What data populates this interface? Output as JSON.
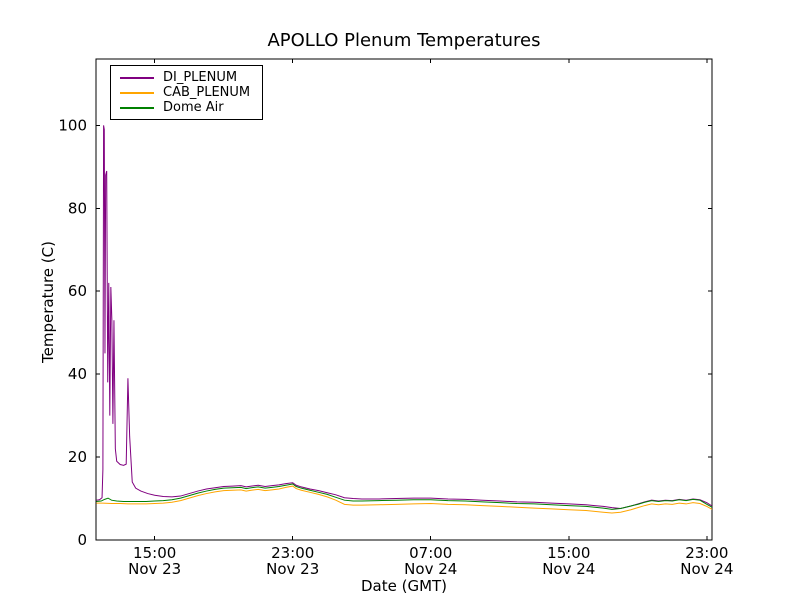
{
  "chart_data": {
    "type": "line",
    "title": "APOLLO Plenum Temperatures",
    "xlabel": "Date (GMT)",
    "ylabel": "Temperature (C)",
    "grid": false,
    "legend_position": "upper left",
    "x_unit": "hours since Nov 23 00:00 GMT",
    "xlim": [
      11.6,
      47.3
    ],
    "ylim": [
      0,
      116
    ],
    "y_ticks": [
      0,
      20,
      40,
      60,
      80,
      100
    ],
    "x_ticks": [
      {
        "value": 15,
        "label": "15:00",
        "sublabel": "Nov 23"
      },
      {
        "value": 23,
        "label": "23:00",
        "sublabel": "Nov 23"
      },
      {
        "value": 31,
        "label": "07:00",
        "sublabel": "Nov 24"
      },
      {
        "value": 39,
        "label": "15:00",
        "sublabel": "Nov 24"
      },
      {
        "value": 47,
        "label": "23:00",
        "sublabel": "Nov 24"
      }
    ],
    "series": [
      {
        "name": "DI_PLENUM",
        "color": "#800080",
        "points": [
          [
            11.62,
            9.6
          ],
          [
            11.8,
            9.7
          ],
          [
            11.95,
            10.2
          ],
          [
            12.0,
            17
          ],
          [
            12.04,
            100
          ],
          [
            12.08,
            99
          ],
          [
            12.12,
            45
          ],
          [
            12.16,
            88
          ],
          [
            12.22,
            89
          ],
          [
            12.28,
            38
          ],
          [
            12.34,
            62
          ],
          [
            12.4,
            30
          ],
          [
            12.46,
            61
          ],
          [
            12.52,
            53
          ],
          [
            12.58,
            28
          ],
          [
            12.64,
            53
          ],
          [
            12.72,
            22
          ],
          [
            12.8,
            19
          ],
          [
            13.0,
            18.2
          ],
          [
            13.2,
            18.0
          ],
          [
            13.35,
            18.3
          ],
          [
            13.45,
            39
          ],
          [
            13.55,
            25
          ],
          [
            13.7,
            14
          ],
          [
            13.9,
            12.5
          ],
          [
            14.2,
            11.8
          ],
          [
            14.6,
            11.2
          ],
          [
            15.0,
            10.8
          ],
          [
            15.5,
            10.5
          ],
          [
            16.0,
            10.4
          ],
          [
            16.5,
            10.6
          ],
          [
            17.0,
            11.2
          ],
          [
            17.5,
            11.8
          ],
          [
            18.0,
            12.3
          ],
          [
            18.5,
            12.6
          ],
          [
            19.0,
            12.9
          ],
          [
            19.5,
            13.0
          ],
          [
            20.0,
            13.1
          ],
          [
            20.3,
            12.8
          ],
          [
            20.6,
            13.0
          ],
          [
            21.0,
            13.2
          ],
          [
            21.4,
            12.9
          ],
          [
            21.8,
            13.1
          ],
          [
            22.2,
            13.3
          ],
          [
            22.6,
            13.6
          ],
          [
            23.0,
            13.8
          ],
          [
            23.2,
            13.2
          ],
          [
            23.5,
            12.8
          ],
          [
            24.0,
            12.3
          ],
          [
            24.5,
            11.9
          ],
          [
            25.0,
            11.4
          ],
          [
            25.5,
            10.9
          ],
          [
            26.0,
            10.2
          ],
          [
            26.5,
            10.0
          ],
          [
            27.0,
            9.9
          ],
          [
            28.0,
            9.9
          ],
          [
            29.0,
            10.0
          ],
          [
            30.0,
            10.1
          ],
          [
            31.0,
            10.1
          ],
          [
            32.0,
            9.9
          ],
          [
            33.0,
            9.8
          ],
          [
            34.0,
            9.6
          ],
          [
            35.0,
            9.4
          ],
          [
            36.0,
            9.2
          ],
          [
            37.0,
            9.1
          ],
          [
            38.0,
            8.9
          ],
          [
            39.0,
            8.7
          ],
          [
            40.0,
            8.5
          ],
          [
            40.5,
            8.3
          ],
          [
            41.0,
            8.1
          ],
          [
            41.5,
            7.8
          ],
          [
            42.0,
            7.6
          ],
          [
            42.3,
            7.9
          ],
          [
            42.6,
            8.2
          ],
          [
            43.0,
            8.7
          ],
          [
            43.4,
            9.2
          ],
          [
            43.8,
            9.6
          ],
          [
            44.2,
            9.4
          ],
          [
            44.6,
            9.6
          ],
          [
            45.0,
            9.5
          ],
          [
            45.4,
            9.8
          ],
          [
            45.8,
            9.6
          ],
          [
            46.2,
            9.9
          ],
          [
            46.6,
            9.7
          ],
          [
            47.0,
            9.0
          ],
          [
            47.3,
            8.2
          ]
        ]
      },
      {
        "name": "CAB_PLENUM",
        "color": "#ffa500",
        "points": [
          [
            11.62,
            8.9
          ],
          [
            12.0,
            8.9
          ],
          [
            12.5,
            8.8
          ],
          [
            13.0,
            8.8
          ],
          [
            13.5,
            8.7
          ],
          [
            14.0,
            8.7
          ],
          [
            14.5,
            8.7
          ],
          [
            15.0,
            8.8
          ],
          [
            15.5,
            8.9
          ],
          [
            16.0,
            9.1
          ],
          [
            16.5,
            9.5
          ],
          [
            17.0,
            10.1
          ],
          [
            17.5,
            10.7
          ],
          [
            18.0,
            11.2
          ],
          [
            18.5,
            11.6
          ],
          [
            19.0,
            11.9
          ],
          [
            19.5,
            12.0
          ],
          [
            20.0,
            12.1
          ],
          [
            20.3,
            11.8
          ],
          [
            20.6,
            12.0
          ],
          [
            21.0,
            12.2
          ],
          [
            21.4,
            11.9
          ],
          [
            21.8,
            12.1
          ],
          [
            22.2,
            12.3
          ],
          [
            22.6,
            12.7
          ],
          [
            23.0,
            13.0
          ],
          [
            23.2,
            12.4
          ],
          [
            23.5,
            12.0
          ],
          [
            24.0,
            11.5
          ],
          [
            24.5,
            11.0
          ],
          [
            25.0,
            10.4
          ],
          [
            25.5,
            9.6
          ],
          [
            26.0,
            8.6
          ],
          [
            26.5,
            8.4
          ],
          [
            27.0,
            8.4
          ],
          [
            28.0,
            8.5
          ],
          [
            29.0,
            8.6
          ],
          [
            30.0,
            8.7
          ],
          [
            31.0,
            8.8
          ],
          [
            32.0,
            8.6
          ],
          [
            33.0,
            8.5
          ],
          [
            34.0,
            8.3
          ],
          [
            35.0,
            8.1
          ],
          [
            36.0,
            7.9
          ],
          [
            37.0,
            7.7
          ],
          [
            38.0,
            7.5
          ],
          [
            39.0,
            7.3
          ],
          [
            40.0,
            7.1
          ],
          [
            40.5,
            6.9
          ],
          [
            41.0,
            6.7
          ],
          [
            41.5,
            6.5
          ],
          [
            42.0,
            6.7
          ],
          [
            42.3,
            7.0
          ],
          [
            42.6,
            7.3
          ],
          [
            43.0,
            7.8
          ],
          [
            43.4,
            8.3
          ],
          [
            43.8,
            8.7
          ],
          [
            44.2,
            8.5
          ],
          [
            44.6,
            8.7
          ],
          [
            45.0,
            8.6
          ],
          [
            45.4,
            8.9
          ],
          [
            45.8,
            8.7
          ],
          [
            46.2,
            9.0
          ],
          [
            46.6,
            8.8
          ],
          [
            47.0,
            8.1
          ],
          [
            47.3,
            7.4
          ]
        ]
      },
      {
        "name": "Dome Air",
        "color": "#008000",
        "points": [
          [
            11.62,
            9.3
          ],
          [
            11.9,
            9.4
          ],
          [
            12.1,
            9.8
          ],
          [
            12.3,
            10.1
          ],
          [
            12.5,
            9.6
          ],
          [
            12.8,
            9.4
          ],
          [
            13.2,
            9.3
          ],
          [
            13.6,
            9.3
          ],
          [
            14.0,
            9.3
          ],
          [
            14.5,
            9.3
          ],
          [
            15.0,
            9.4
          ],
          [
            15.5,
            9.5
          ],
          [
            16.0,
            9.7
          ],
          [
            16.5,
            10.1
          ],
          [
            17.0,
            10.7
          ],
          [
            17.5,
            11.3
          ],
          [
            18.0,
            11.8
          ],
          [
            18.5,
            12.2
          ],
          [
            19.0,
            12.5
          ],
          [
            19.5,
            12.6
          ],
          [
            20.0,
            12.7
          ],
          [
            20.3,
            12.4
          ],
          [
            20.6,
            12.6
          ],
          [
            21.0,
            12.8
          ],
          [
            21.4,
            12.5
          ],
          [
            21.8,
            12.7
          ],
          [
            22.2,
            12.9
          ],
          [
            22.6,
            13.2
          ],
          [
            23.0,
            13.5
          ],
          [
            23.2,
            12.9
          ],
          [
            23.5,
            12.5
          ],
          [
            24.0,
            12.0
          ],
          [
            24.5,
            11.5
          ],
          [
            25.0,
            11.0
          ],
          [
            25.5,
            10.3
          ],
          [
            26.0,
            9.6
          ],
          [
            26.5,
            9.4
          ],
          [
            27.0,
            9.4
          ],
          [
            28.0,
            9.5
          ],
          [
            29.0,
            9.6
          ],
          [
            30.0,
            9.7
          ],
          [
            31.0,
            9.7
          ],
          [
            32.0,
            9.5
          ],
          [
            33.0,
            9.4
          ],
          [
            34.0,
            9.2
          ],
          [
            35.0,
            9.0
          ],
          [
            36.0,
            8.8
          ],
          [
            37.0,
            8.7
          ],
          [
            38.0,
            8.5
          ],
          [
            39.0,
            8.3
          ],
          [
            40.0,
            8.1
          ],
          [
            40.5,
            7.9
          ],
          [
            41.0,
            7.7
          ],
          [
            41.5,
            7.4
          ],
          [
            42.0,
            7.6
          ],
          [
            42.3,
            7.9
          ],
          [
            42.6,
            8.2
          ],
          [
            43.0,
            8.6
          ],
          [
            43.4,
            9.1
          ],
          [
            43.8,
            9.5
          ],
          [
            44.2,
            9.3
          ],
          [
            44.6,
            9.5
          ],
          [
            45.0,
            9.4
          ],
          [
            45.4,
            9.7
          ],
          [
            45.8,
            9.5
          ],
          [
            46.2,
            9.8
          ],
          [
            46.6,
            9.6
          ],
          [
            47.0,
            8.6
          ],
          [
            47.3,
            7.9
          ]
        ]
      }
    ]
  }
}
